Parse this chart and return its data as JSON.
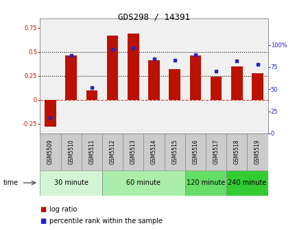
{
  "title": "GDS298 / 14391",
  "samples": [
    "GSM5509",
    "GSM5510",
    "GSM5511",
    "GSM5512",
    "GSM5513",
    "GSM5514",
    "GSM5515",
    "GSM5516",
    "GSM5517",
    "GSM5518",
    "GSM5519"
  ],
  "log_ratio": [
    -0.28,
    0.46,
    0.1,
    0.67,
    0.69,
    0.41,
    0.32,
    0.46,
    0.24,
    0.35,
    0.28
  ],
  "percentile": [
    18,
    88,
    52,
    95,
    97,
    84,
    83,
    89,
    70,
    82,
    78
  ],
  "groups": [
    {
      "label": "30 minute",
      "start": 0,
      "end": 3,
      "color": "#d4f5d4"
    },
    {
      "label": "60 minute",
      "start": 3,
      "end": 7,
      "color": "#aaeeaa"
    },
    {
      "label": "120 minute",
      "start": 7,
      "end": 9,
      "color": "#66dd66"
    },
    {
      "label": "240 minute",
      "start": 9,
      "end": 11,
      "color": "#33cc33"
    }
  ],
  "bar_color": "#bb1100",
  "dot_color": "#2222cc",
  "ylim_left": [
    -0.35,
    0.85
  ],
  "ylim_right": [
    0,
    130
  ],
  "yticks_left": [
    -0.25,
    0,
    0.25,
    0.5,
    0.75
  ],
  "yticks_right": [
    0,
    25,
    50,
    75,
    100
  ],
  "dotted_lines": [
    0.25,
    0.5
  ],
  "bg_color": "#ffffff",
  "plot_bg_color": "#f0f0f0",
  "title_fontsize": 9,
  "tick_fontsize": 6,
  "label_fontsize": 5.5,
  "group_fontsize": 7,
  "legend_fontsize": 7
}
